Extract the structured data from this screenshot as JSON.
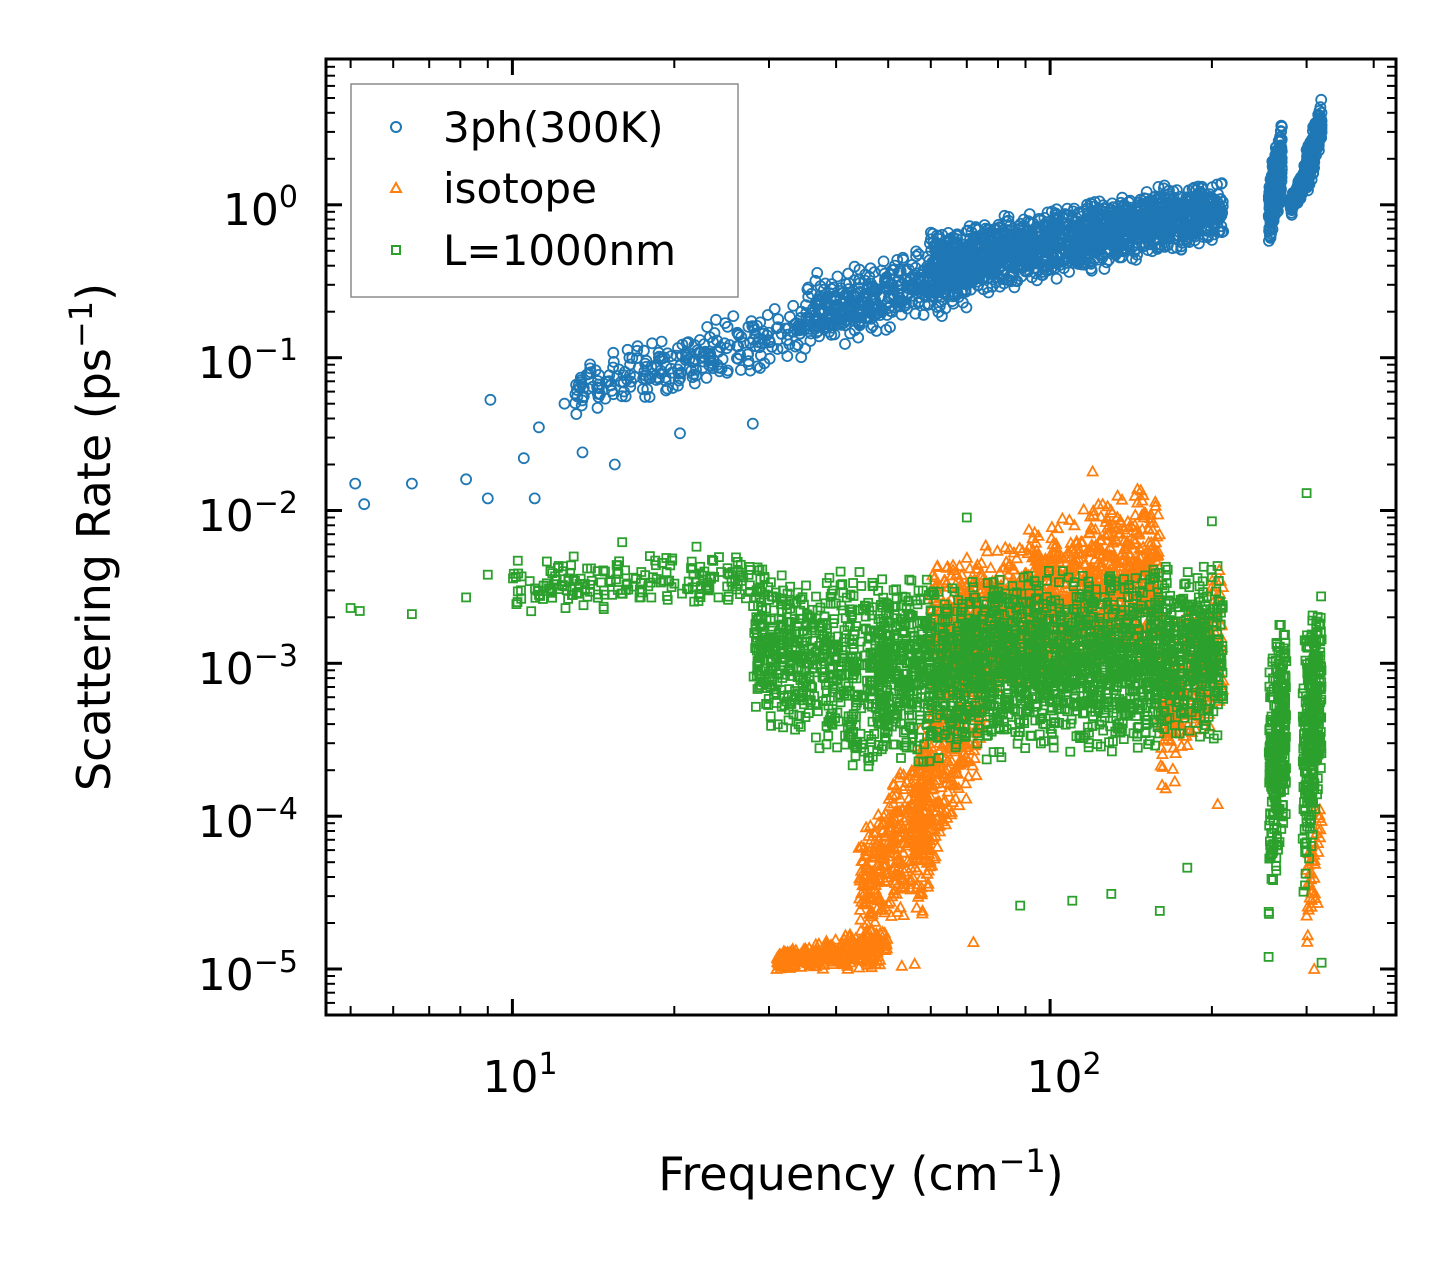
{
  "chart_data": {
    "type": "scatter",
    "xscale": "log",
    "yscale": "log",
    "xlabel": "Frequency (cm",
    "xlabel_sup": "−1",
    "xlabel_end": ")",
    "ylabel": "Scattering Rate (ps",
    "ylabel_sup": "−1",
    "ylabel_end": ")",
    "xlim": [
      4.5,
      440
    ],
    "ylim": [
      5e-06,
      9.0
    ],
    "x_major_ticks": [
      {
        "value": 10,
        "base": "10",
        "exp": "1"
      },
      {
        "value": 100,
        "base": "10",
        "exp": "2"
      }
    ],
    "y_major_ticks": [
      {
        "value": 1,
        "base": "10",
        "exp": "0"
      },
      {
        "value": 0.1,
        "base": "10",
        "exp": "−1"
      },
      {
        "value": 0.01,
        "base": "10",
        "exp": "−2"
      },
      {
        "value": 0.001,
        "base": "10",
        "exp": "−3"
      },
      {
        "value": 0.0001,
        "base": "10",
        "exp": "−4"
      },
      {
        "value": 1e-05,
        "base": "10",
        "exp": "−5"
      }
    ],
    "legend_position": "top-left",
    "series": [
      {
        "name": "3ph(300K)",
        "marker": "circle",
        "color": "#1f77b4",
        "sample_points": [
          [
            5.1,
            0.015
          ],
          [
            5.3,
            0.011
          ],
          [
            6.5,
            0.015
          ],
          [
            8.2,
            0.016
          ],
          [
            9.0,
            0.012
          ],
          [
            9.1,
            0.053
          ],
          [
            10.5,
            0.022
          ],
          [
            11.0,
            0.012
          ],
          [
            11.2,
            0.035
          ],
          [
            12.5,
            0.05
          ],
          [
            13.5,
            0.024
          ],
          [
            15.5,
            0.02
          ],
          [
            16.5,
            0.1
          ],
          [
            20.5,
            0.032
          ],
          [
            28,
            0.037
          ]
        ],
        "bands": [
          {
            "x": [
              13,
              70
            ],
            "y_start": [
              0.035,
              0.2
            ],
            "y_end": [
              0.1,
              0.5
            ],
            "density": 450
          },
          {
            "x": [
              35,
              75
            ],
            "y_start": [
              0.12,
              0.25
            ],
            "y_end": [
              0.35,
              0.7
            ],
            "density": 300
          },
          {
            "x": [
              60,
              210
            ],
            "y_start": [
              0.22,
              0.55
            ],
            "y_end": [
              0.7,
              1.6
            ],
            "density": 1600
          },
          {
            "x": [
              255,
              270
            ],
            "y_start": [
              0.5,
              1.0
            ],
            "y_end": [
              1.5,
              4.2
            ],
            "density": 260
          },
          {
            "x": [
              280,
              300
            ],
            "y_start": [
              0.8,
              1.3
            ],
            "y_end": [
              1.1,
              2.0
            ],
            "density": 180
          },
          {
            "x": [
              300,
              320
            ],
            "y_start": [
              1.0,
              2.5
            ],
            "y_end": [
              2.5,
              5.0
            ],
            "density": 220
          }
        ]
      },
      {
        "name": "isotope",
        "marker": "triangle",
        "color": "#ff7f0e",
        "sample_points": [
          [
            31,
            1e-05
          ],
          [
            53,
            1.05e-05
          ],
          [
            56,
            1.08e-05
          ],
          [
            72,
            1.5e-05
          ],
          [
            120,
            0.018
          ],
          [
            205,
            0.00012
          ],
          [
            310,
            1e-05
          ]
        ],
        "bands": [
          {
            "x": [
              31,
              50
            ],
            "y_start": [
              1e-05,
              1e-05
            ],
            "y_end": [
              1.3e-05,
              2e-05
            ],
            "density": 350
          },
          {
            "x": [
              44,
              60
            ],
            "y_start": [
              1.5e-05,
              2e-05
            ],
            "y_end": [
              8e-05,
              0.0005
            ],
            "density": 350
          },
          {
            "x": [
              55,
              75
            ],
            "y_start": [
              2e-05,
              0.0002
            ],
            "y_end": [
              0.0003,
              0.003
            ],
            "density": 320
          },
          {
            "x": [
              60,
              160
            ],
            "y_start": [
              0.0005,
              0.001
            ],
            "y_end": [
              0.005,
              0.018
            ],
            "density": 1300
          },
          {
            "x": [
              160,
              210
            ],
            "y_start": [
              0.0001,
              0.0004
            ],
            "y_end": [
              0.0015,
              0.005
            ],
            "density": 250
          },
          {
            "x": [
              300,
              320
            ],
            "y_start": [
              1e-05,
              3e-05
            ],
            "y_end": [
              0.0001,
              0.0002
            ],
            "density": 40
          }
        ]
      },
      {
        "name": "L=1000nm",
        "marker": "square",
        "color": "#2ca02c",
        "sample_points": [
          [
            5.0,
            0.0023
          ],
          [
            5.2,
            0.0022
          ],
          [
            6.5,
            0.0021
          ],
          [
            8.2,
            0.0027
          ],
          [
            9.0,
            0.0038
          ],
          [
            13,
            0.005
          ],
          [
            16,
            0.0062
          ],
          [
            22,
            0.0058
          ],
          [
            70,
            0.009
          ],
          [
            88,
            2.6e-05
          ],
          [
            110,
            2.8e-05
          ],
          [
            130,
            3.1e-05
          ],
          [
            160,
            2.4e-05
          ],
          [
            180,
            4.6e-05
          ],
          [
            200,
            0.0085
          ],
          [
            255,
            1.2e-05
          ],
          [
            300,
            0.013
          ],
          [
            320,
            1.1e-05
          ]
        ],
        "bands": [
          {
            "x": [
              10,
              30
            ],
            "y_start": [
              0.002,
              0.0025
            ],
            "y_end": [
              0.005,
              0.0055
            ],
            "density": 200
          },
          {
            "x": [
              28,
              50
            ],
            "y_start": [
              0.0004,
              0.00015
            ],
            "y_end": [
              0.0045,
              0.0045
            ],
            "density": 600
          },
          {
            "x": [
              48,
              210
            ],
            "y_start": [
              0.0002,
              0.0003
            ],
            "y_end": [
              0.004,
              0.0045
            ],
            "density": 2200
          },
          {
            "x": [
              255,
              275
            ],
            "y_start": [
              2e-05,
              0.0001
            ],
            "y_end": [
              0.0015,
              0.003
            ],
            "density": 300
          },
          {
            "x": [
              295,
              320
            ],
            "y_start": [
              2e-05,
              0.0002
            ],
            "y_end": [
              0.0015,
              0.004
            ],
            "density": 300
          }
        ]
      }
    ]
  }
}
